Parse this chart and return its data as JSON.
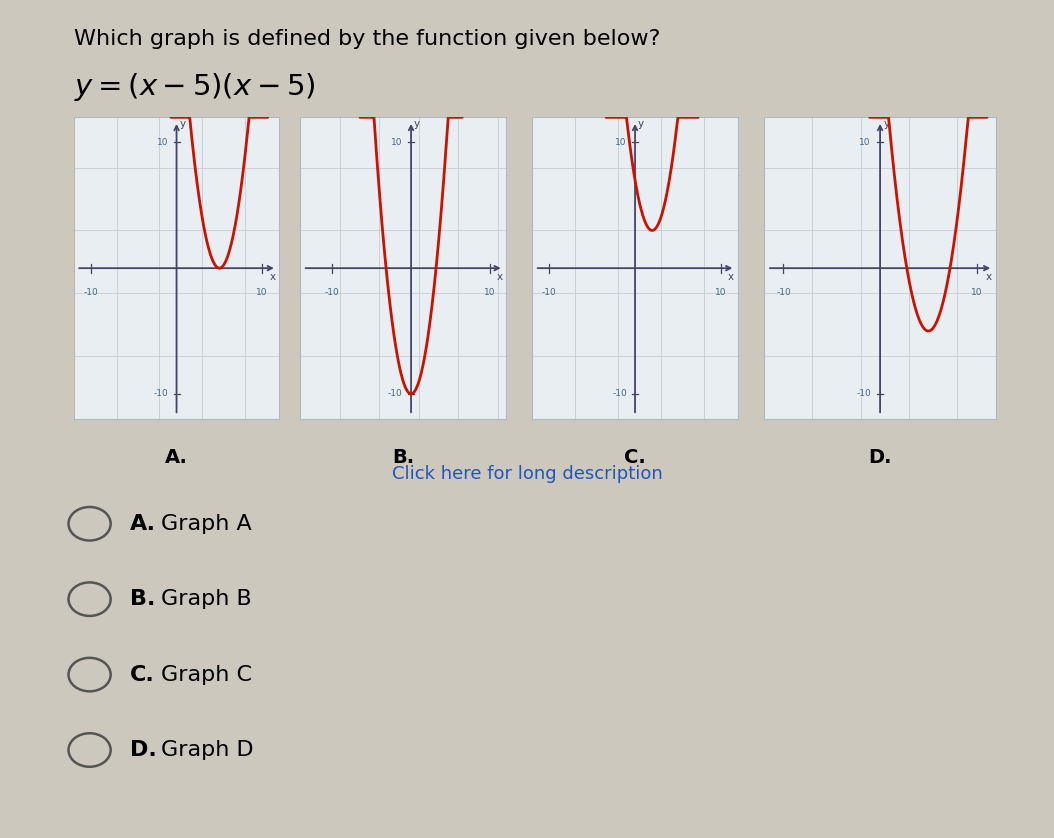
{
  "title_question": "Which graph is defined by the function given below?",
  "background_color": "#ccc8be",
  "graph_bg_color": "#e8eef2",
  "graph_border_color": "#b0b8c0",
  "curve_color": "#cc1100",
  "axis_color": "#444466",
  "tick_label_color": "#446688",
  "graphs": [
    {
      "label": "A.",
      "xlim": [
        -12,
        12
      ],
      "ylim": [
        -12,
        12
      ],
      "func_type": "A",
      "note": "y=(x-5)^2, only right portion visible - vertex at (5,0) touching x-axis"
    },
    {
      "label": "B.",
      "xlim": [
        -14,
        12
      ],
      "ylim": [
        -12,
        12
      ],
      "func_type": "B",
      "note": "y=x^2-10, vertex at (0,-10), symmetric deep parabola"
    },
    {
      "label": "C.",
      "xlim": [
        -12,
        12
      ],
      "ylim": [
        -12,
        12
      ],
      "func_type": "C",
      "note": "y=(x-2)^2+3, vertex above x-axis near center-right"
    },
    {
      "label": "D.",
      "xlim": [
        -12,
        12
      ],
      "ylim": [
        -12,
        12
      ],
      "func_type": "D",
      "note": "y=(x-5)^2-5, vertex at (5,-5), below x-axis"
    }
  ],
  "answer_choices": [
    {
      "letter": "A.",
      "text": "Graph A"
    },
    {
      "letter": "B.",
      "text": "Graph B"
    },
    {
      "letter": "C.",
      "text": "Graph C"
    },
    {
      "letter": "D.",
      "text": "Graph D"
    }
  ],
  "click_text": "Click here for long description",
  "title_fontsize": 16,
  "answer_fontsize": 16,
  "graph_label_fontsize": 14
}
